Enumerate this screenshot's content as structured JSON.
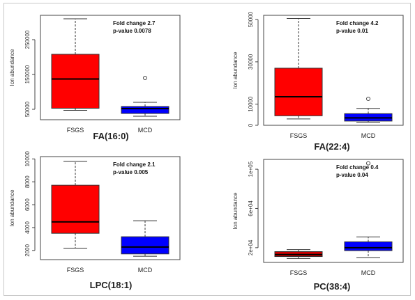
{
  "chart_data": [
    {
      "type": "box",
      "title": "FA(16:0)",
      "ylabel": "Ion abundance",
      "ylim": [
        20000,
        320000
      ],
      "yticks": [
        50000,
        150000,
        250000
      ],
      "ytick_labels": [
        "50000",
        "150000",
        "250000"
      ],
      "annotation": [
        "Fold change 2.7",
        "p-value 0.0078"
      ],
      "categories": [
        "FSGS",
        "MCD"
      ],
      "boxes": [
        {
          "name": "FSGS",
          "color": "#ff0000",
          "whisker_low": 47000,
          "q1": 53000,
          "median": 137000,
          "q3": 208000,
          "whisker_high": 310000,
          "outliers": []
        },
        {
          "name": "MCD",
          "color": "#0000ff",
          "whisker_low": 30000,
          "q1": 38000,
          "median": 52000,
          "q3": 58000,
          "whisker_high": 70000,
          "outliers": [
            140000
          ]
        }
      ]
    },
    {
      "type": "box",
      "title": "FA(22:4)",
      "ylabel": "Ion abundance",
      "ylim": [
        0,
        52000
      ],
      "yticks": [
        0,
        10000,
        30000,
        50000
      ],
      "ytick_labels": [
        "0",
        "10000",
        "30000",
        "50000"
      ],
      "annotation": [
        "Fold change 4.2",
        "p-value 0.01"
      ],
      "categories": [
        "FSGS",
        "MCD"
      ],
      "boxes": [
        {
          "name": "FSGS",
          "color": "#ff0000",
          "whisker_low": 3000,
          "q1": 4500,
          "median": 13500,
          "q3": 27000,
          "whisker_high": 50500,
          "outliers": []
        },
        {
          "name": "MCD",
          "color": "#0000ff",
          "whisker_low": 1500,
          "q1": 2000,
          "median": 3500,
          "q3": 5500,
          "whisker_high": 8000,
          "outliers": [
            12500
          ]
        }
      ]
    },
    {
      "type": "box",
      "title": "LPC(18:1)",
      "ylabel": "Ion abundance",
      "ylim": [
        1200,
        10200
      ],
      "yticks": [
        2000,
        4000,
        6000,
        8000,
        10000
      ],
      "ytick_labels": [
        "2000",
        "4000",
        "6000",
        "8000",
        "10000"
      ],
      "annotation": [
        "Fold change 2.1",
        "p-value 0.005"
      ],
      "categories": [
        "FSGS",
        "MCD"
      ],
      "boxes": [
        {
          "name": "FSGS",
          "color": "#ff0000",
          "whisker_low": 2200,
          "q1": 3500,
          "median": 4500,
          "q3": 7700,
          "whisker_high": 9800,
          "outliers": []
        },
        {
          "name": "MCD",
          "color": "#0000ff",
          "whisker_low": 1500,
          "q1": 1700,
          "median": 2300,
          "q3": 3200,
          "whisker_high": 4600,
          "outliers": []
        }
      ]
    },
    {
      "type": "box",
      "title": "PC(38:4)",
      "ylabel": "Ion abundance",
      "ylim": [
        5000,
        110000
      ],
      "yticks": [
        20000,
        60000,
        100000
      ],
      "ytick_labels": [
        "2e+04",
        "6e+04",
        "1e+05"
      ],
      "annotation": [
        "Fold change 0.4",
        "p-value 0.04"
      ],
      "categories": [
        "FSGS",
        "MCD"
      ],
      "boxes": [
        {
          "name": "FSGS",
          "color": "#cc0000",
          "whisker_low": 9000,
          "q1": 11000,
          "median": 13000,
          "q3": 16000,
          "whisker_high": 18000,
          "outliers": []
        },
        {
          "name": "MCD",
          "color": "#0000ff",
          "whisker_low": 10000,
          "q1": 17000,
          "median": 20000,
          "q3": 26000,
          "whisker_high": 31000,
          "outliers": [
            106000
          ]
        }
      ]
    }
  ]
}
